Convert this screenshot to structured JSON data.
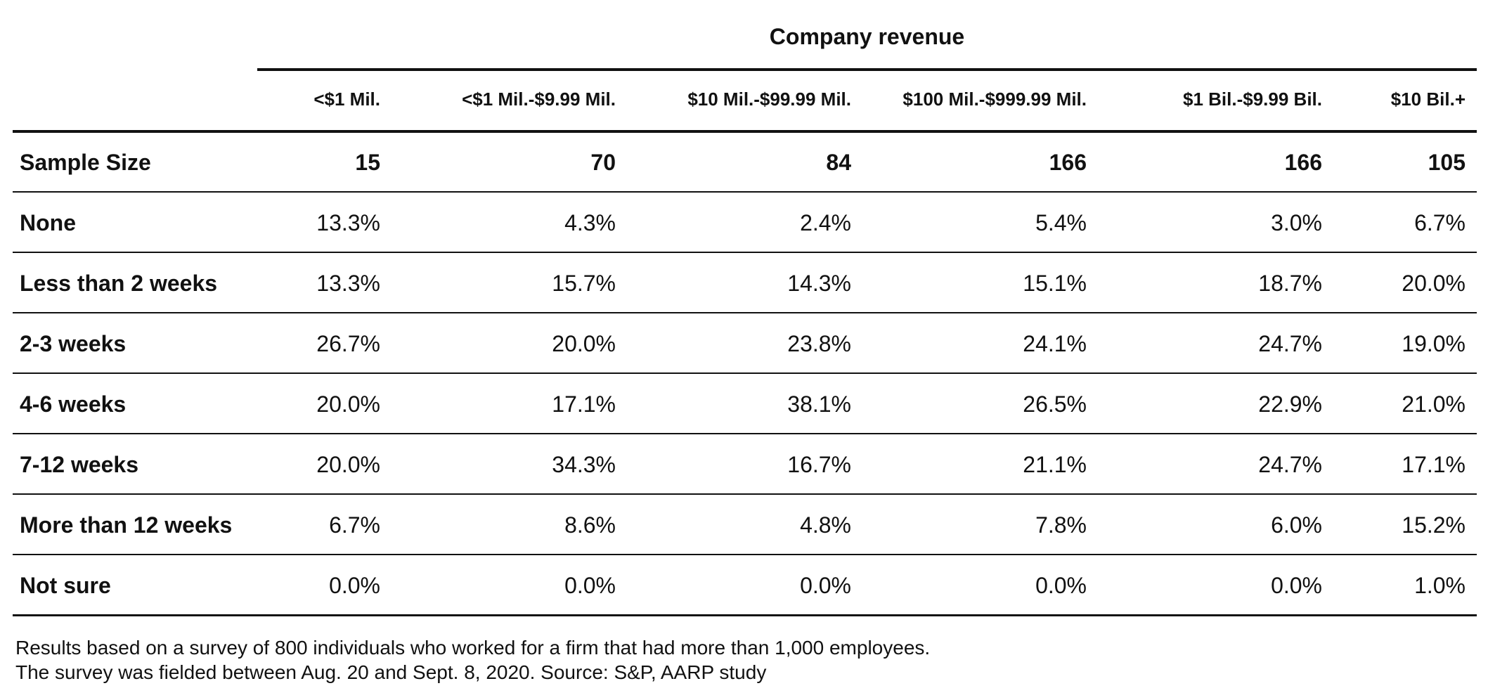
{
  "table": {
    "group_title": "Company revenue",
    "columns": [
      "<$1 Mil.",
      "<$1 Mil.-$9.99 Mil.",
      "$10 Mil.-$99.99 Mil.",
      "$100 Mil.-$999.99 Mil.",
      "$1 Bil.-$9.99 Bil.",
      "$10 Bil.+"
    ],
    "rows": [
      {
        "label": "Sample Size",
        "values": [
          "15",
          "70",
          "84",
          "166",
          "166",
          "105"
        ]
      },
      {
        "label": "None",
        "values": [
          "13.3%",
          "4.3%",
          "2.4%",
          "5.4%",
          "3.0%",
          "6.7%"
        ]
      },
      {
        "label": "Less than 2 weeks",
        "values": [
          "13.3%",
          "15.7%",
          "14.3%",
          "15.1%",
          "18.7%",
          "20.0%"
        ]
      },
      {
        "label": "2-3 weeks",
        "values": [
          "26.7%",
          "20.0%",
          "23.8%",
          "24.1%",
          "24.7%",
          "19.0%"
        ]
      },
      {
        "label": "4-6 weeks",
        "values": [
          "20.0%",
          "17.1%",
          "38.1%",
          "26.5%",
          "22.9%",
          "21.0%"
        ]
      },
      {
        "label": "7-12 weeks",
        "values": [
          "20.0%",
          "34.3%",
          "16.7%",
          "21.1%",
          "24.7%",
          "17.1%"
        ]
      },
      {
        "label": "More than 12 weeks",
        "values": [
          "6.7%",
          "8.6%",
          "4.8%",
          "7.8%",
          "6.0%",
          "15.2%"
        ]
      },
      {
        "label": "Not sure",
        "values": [
          "0.0%",
          "0.0%",
          "0.0%",
          "0.0%",
          "0.0%",
          "1.0%"
        ]
      }
    ],
    "footnotes": [
      "Results based on a survey of 800 individuals who worked for a firm that had more than 1,000 employees.",
      "The survey was fielded between Aug. 20 and Sept. 8, 2020. Source: S&P, AARP study"
    ]
  },
  "chart_data": {
    "type": "table",
    "title": "Company revenue",
    "columns": [
      "<$1 Mil.",
      "<$1 Mil.-$9.99 Mil.",
      "$10 Mil.-$99.99 Mil.",
      "$100 Mil.-$999.99 Mil.",
      "$1 Bil.-$9.99 Bil.",
      "$10 Bil.+"
    ],
    "rows": [
      "Sample Size",
      "None",
      "Less than 2 weeks",
      "2-3 weeks",
      "4-6 weeks",
      "7-12 weeks",
      "More than 12 weeks",
      "Not sure"
    ],
    "series": [
      {
        "name": "<$1 Mil.",
        "values": [
          15,
          13.3,
          13.3,
          26.7,
          20.0,
          20.0,
          6.7,
          0.0
        ]
      },
      {
        "name": "<$1 Mil.-$9.99 Mil.",
        "values": [
          70,
          4.3,
          15.7,
          20.0,
          17.1,
          34.3,
          8.6,
          0.0
        ]
      },
      {
        "name": "$10 Mil.-$99.99 Mil.",
        "values": [
          84,
          2.4,
          14.3,
          23.8,
          38.1,
          16.7,
          4.8,
          0.0
        ]
      },
      {
        "name": "$100 Mil.-$999.99 Mil.",
        "values": [
          166,
          5.4,
          15.1,
          24.1,
          26.5,
          21.1,
          7.8,
          0.0
        ]
      },
      {
        "name": "$1 Bil.-$9.99 Bil.",
        "values": [
          166,
          3.0,
          18.7,
          24.7,
          22.9,
          24.7,
          6.0,
          0.0
        ]
      },
      {
        "name": "$10 Bil.+",
        "values": [
          105,
          6.7,
          20.0,
          19.0,
          21.0,
          17.1,
          15.2,
          1.0
        ]
      }
    ]
  }
}
